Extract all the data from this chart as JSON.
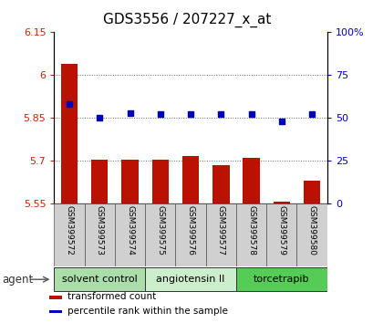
{
  "title": "GDS3556 / 207227_x_at",
  "samples": [
    "GSM399572",
    "GSM399573",
    "GSM399574",
    "GSM399575",
    "GSM399576",
    "GSM399577",
    "GSM399578",
    "GSM399579",
    "GSM399580"
  ],
  "transformed_counts": [
    6.04,
    5.705,
    5.705,
    5.705,
    5.715,
    5.685,
    5.71,
    5.555,
    5.63
  ],
  "percentile_ranks": [
    58,
    50,
    53,
    52,
    52,
    52,
    52,
    48,
    52
  ],
  "ylim_left": [
    5.55,
    6.15
  ],
  "ylim_right": [
    0,
    100
  ],
  "yticks_left": [
    5.55,
    5.7,
    5.85,
    6.0,
    6.15
  ],
  "ytick_labels_left": [
    "5.55",
    "5.7",
    "5.85",
    "6",
    "6.15"
  ],
  "yticks_right": [
    0,
    25,
    50,
    75,
    100
  ],
  "ytick_labels_right": [
    "0",
    "25",
    "50",
    "75",
    "100%"
  ],
  "agent_groups": [
    {
      "label": "solvent control",
      "samples": [
        0,
        1,
        2
      ],
      "color": "#aaddaa"
    },
    {
      "label": "angiotensin II",
      "samples": [
        3,
        4,
        5
      ],
      "color": "#cceecc"
    },
    {
      "label": "torcetrapib",
      "samples": [
        6,
        7,
        8
      ],
      "color": "#55cc55"
    }
  ],
  "bar_color": "#bb1100",
  "dot_color": "#0000bb",
  "bar_bottom": 5.55,
  "grid_yticks": [
    5.7,
    5.85,
    6.0
  ],
  "legend_items": [
    {
      "label": "transformed count",
      "color": "#bb1100"
    },
    {
      "label": "percentile rank within the sample",
      "color": "#0000bb"
    }
  ],
  "agent_label": "agent",
  "title_fontsize": 11,
  "tick_fontsize": 8,
  "label_fontsize": 8,
  "agent_fontsize": 8
}
